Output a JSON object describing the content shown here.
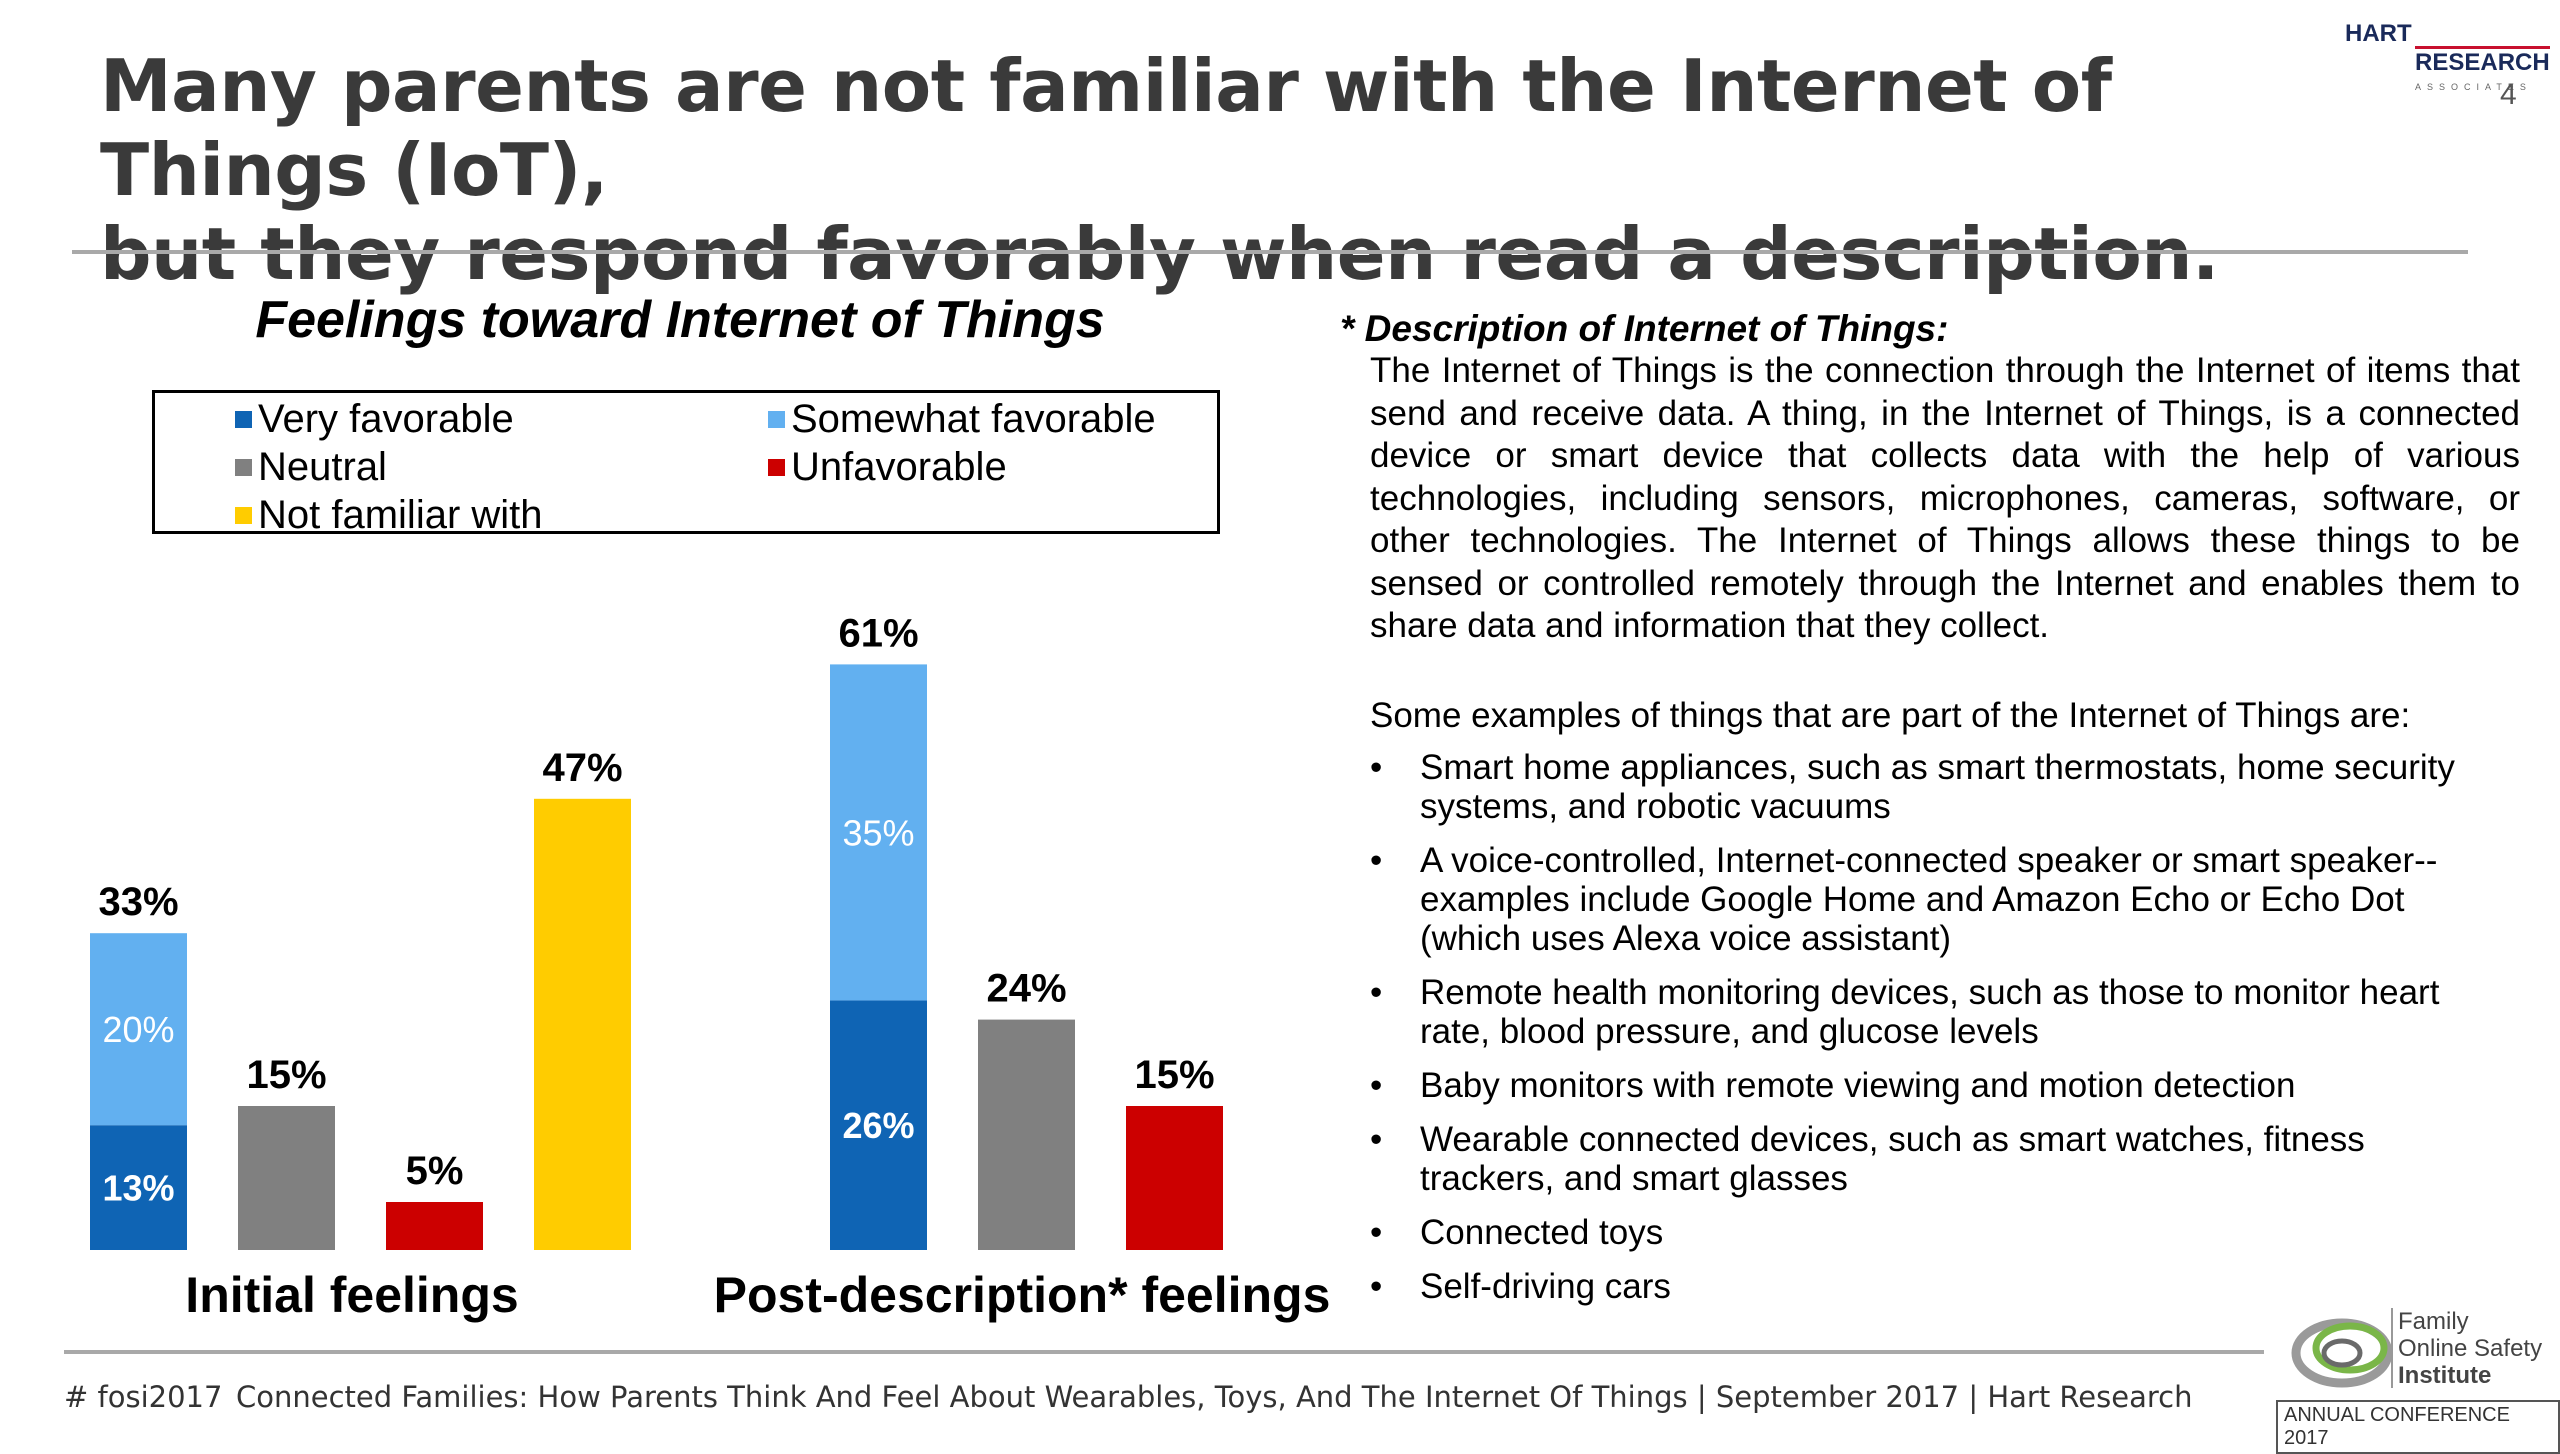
{
  "header": {
    "title_line1": "Many parents are not familiar with the Internet of Things (IoT),",
    "title_line2": "but they respond favorably when read a description.",
    "page_number": "4",
    "logo_line1": "HART",
    "logo_line2": "RESEARCH",
    "logo_line3": "ASSOCIATES"
  },
  "colors": {
    "very_favorable": "#0f64b4",
    "somewhat_favorable": "#62b0f0",
    "neutral": "#808080",
    "unfavorable": "#cc0000",
    "not_familiar": "#ffcc00"
  },
  "chart_data": {
    "type": "bar",
    "title": "Feelings toward Internet of Things",
    "legend": [
      {
        "name": "Very favorable",
        "color": "#0f64b4"
      },
      {
        "name": "Somewhat favorable",
        "color": "#62b0f0"
      },
      {
        "name": "Neutral",
        "color": "#808080"
      },
      {
        "name": "Unfavorable",
        "color": "#cc0000"
      },
      {
        "name": "Not familiar with",
        "color": "#ffcc00"
      }
    ],
    "legend_position": "top",
    "groups": [
      {
        "label": "Initial feelings",
        "bars": [
          {
            "total": 33,
            "total_label": "33%",
            "segments": [
              {
                "series": "Very favorable",
                "value": 13,
                "label": "13%"
              },
              {
                "series": "Somewhat favorable",
                "value": 20,
                "label": "20%"
              }
            ]
          },
          {
            "total": 15,
            "total_label": "15%",
            "segments": [
              {
                "series": "Neutral",
                "value": 15,
                "label": ""
              }
            ]
          },
          {
            "total": 5,
            "total_label": "5%",
            "segments": [
              {
                "series": "Unfavorable",
                "value": 5,
                "label": ""
              }
            ]
          },
          {
            "total": 47,
            "total_label": "47%",
            "segments": [
              {
                "series": "Not familiar with",
                "value": 47,
                "label": ""
              }
            ]
          }
        ]
      },
      {
        "label": "Post-description* feelings",
        "bars": [
          {
            "total": 61,
            "total_label": "61%",
            "segments": [
              {
                "series": "Very favorable",
                "value": 26,
                "label": "26%"
              },
              {
                "series": "Somewhat favorable",
                "value": 35,
                "label": "35%"
              }
            ]
          },
          {
            "total": 24,
            "total_label": "24%",
            "segments": [
              {
                "series": "Neutral",
                "value": 24,
                "label": ""
              }
            ]
          },
          {
            "total": 15,
            "total_label": "15%",
            "segments": [
              {
                "series": "Unfavorable",
                "value": 15,
                "label": ""
              }
            ]
          }
        ]
      }
    ],
    "ylim": [
      0,
      61
    ],
    "grid": false
  },
  "description": {
    "heading": "* Description of Internet of Things:",
    "body": "The Internet of Things is the connection through the Internet of items that send and receive data.  A thing, in the Internet of Things, is a connected device or smart device that collects data with the help of various technologies, including sensors, microphones, cameras, software, or other technologies.  The Internet of Things allows these things to be sensed or controlled remotely through the Internet and enables them to share data and information that they collect.",
    "examples_intro": "Some examples of things that are part of the Internet of Things are:",
    "bullet": "•",
    "examples": [
      "Smart home appliances, such as smart thermostats, home security systems, and robotic vacuums",
      "A voice-controlled, Internet-connected speaker or smart speaker--examples include Google Home and Amazon Echo or Echo Dot (which uses Alexa voice assistant)",
      "Remote health monitoring devices, such as those to monitor heart rate, blood pressure, and glucose levels",
      "Baby monitors with remote viewing and motion detection",
      "Wearable connected devices, such as smart watches, fitness trackers, and smart glasses",
      "Connected toys",
      "Self-driving cars"
    ]
  },
  "footer": {
    "tag": "# fosi2017",
    "text": "Connected Families: How Parents Think And Feel About Wearables, Toys, And The Internet Of Things | September 2017 | Hart Research",
    "org_line1": "Family",
    "org_line2": "Online Safety",
    "org_line3": "Institute",
    "conference": "ANNUAL CONFERENCE 2017"
  }
}
